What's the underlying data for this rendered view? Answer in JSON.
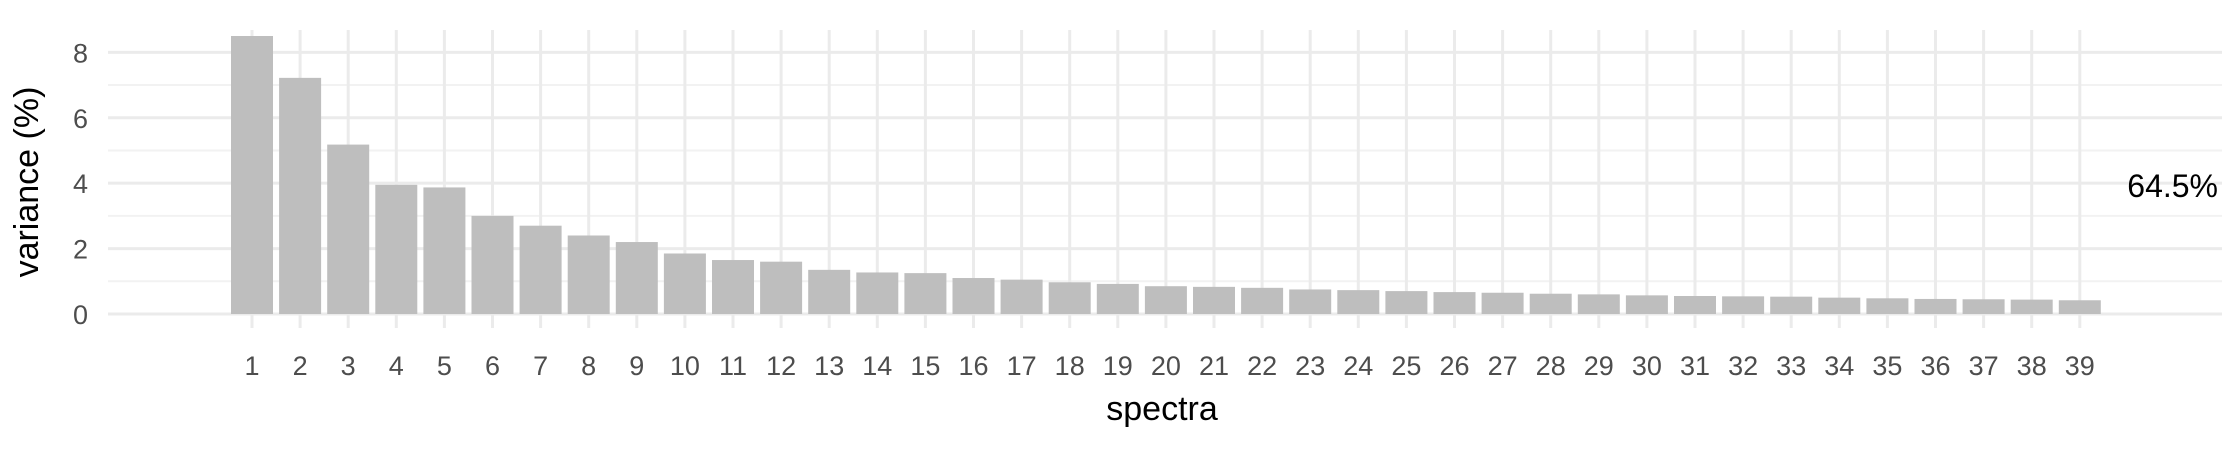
{
  "chart_data": {
    "type": "bar",
    "xlabel": "spectra",
    "ylabel": "variance (%)",
    "annotation": "64.5%",
    "categories": [
      "1",
      "2",
      "3",
      "4",
      "5",
      "6",
      "7",
      "8",
      "9",
      "10",
      "11",
      "12",
      "13",
      "14",
      "15",
      "16",
      "17",
      "18",
      "19",
      "20",
      "21",
      "22",
      "23",
      "24",
      "25",
      "26",
      "27",
      "28",
      "29",
      "30",
      "31",
      "32",
      "33",
      "34",
      "35",
      "36",
      "37",
      "38",
      "39"
    ],
    "values": [
      8.5,
      7.22,
      5.18,
      3.95,
      3.87,
      3.0,
      2.7,
      2.4,
      2.2,
      1.85,
      1.65,
      1.6,
      1.35,
      1.27,
      1.25,
      1.1,
      1.05,
      0.97,
      0.92,
      0.85,
      0.83,
      0.8,
      0.75,
      0.73,
      0.7,
      0.67,
      0.65,
      0.62,
      0.6,
      0.57,
      0.55,
      0.54,
      0.53,
      0.5,
      0.48,
      0.46,
      0.45,
      0.44,
      0.42
    ],
    "yticks": [
      "0",
      "2",
      "4",
      "6",
      "8"
    ],
    "ylim": [
      0,
      8.6
    ],
    "bar_color": "#bebebe",
    "grid": true,
    "legend": false
  }
}
